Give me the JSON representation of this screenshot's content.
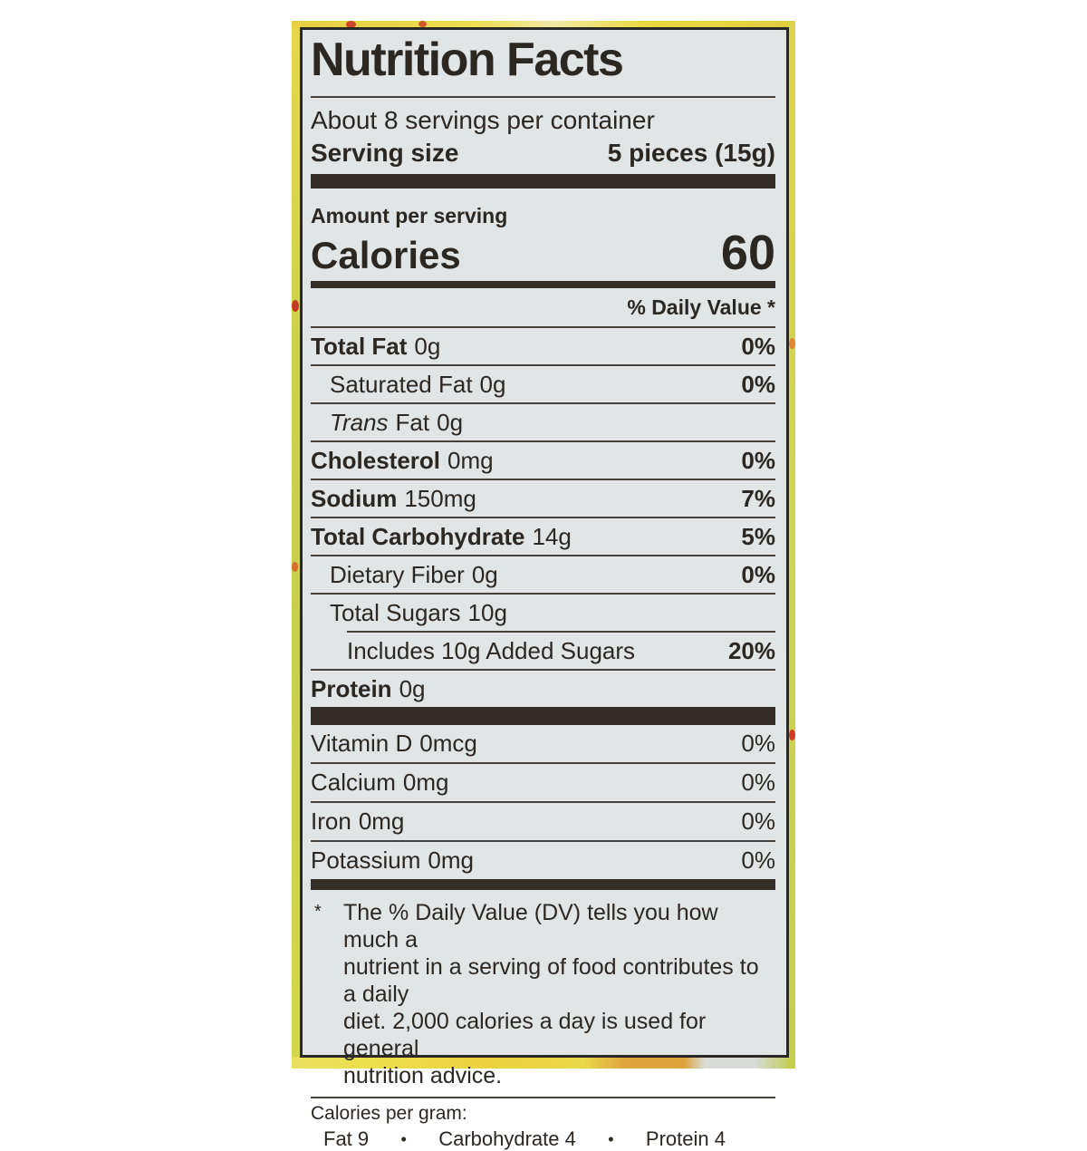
{
  "title": "Nutrition Facts",
  "servings_per_container": "About 8 servings per container",
  "serving_size": {
    "label": "Serving size",
    "value": "5 pieces (15g)"
  },
  "amount_per_serving": "Amount per serving",
  "calories": {
    "label": "Calories",
    "value": "60"
  },
  "daily_value_header": "% Daily Value *",
  "nutrients": [
    {
      "name": "Total Fat",
      "amount": "0g",
      "dv": "0%"
    },
    {
      "name": "Saturated Fat",
      "amount": "0g",
      "dv": "0%"
    },
    {
      "name_italic": "Trans",
      "name": "Fat",
      "amount": "0g",
      "dv": ""
    },
    {
      "name": "Cholesterol",
      "amount": "0mg",
      "dv": "0%"
    },
    {
      "name": "Sodium",
      "amount": "150mg",
      "dv": "7%"
    },
    {
      "name": "Total Carbohydrate",
      "amount": "14g",
      "dv": "5%"
    },
    {
      "name": "Dietary Fiber",
      "amount": "0g",
      "dv": "0%"
    },
    {
      "name": "Total Sugars",
      "amount": "10g",
      "dv": ""
    },
    {
      "name": "Includes 10g Added Sugars",
      "amount": "",
      "dv": "20%"
    },
    {
      "name": "Protein",
      "amount": "0g",
      "dv": ""
    }
  ],
  "vitamins": [
    {
      "name": "Vitamin D",
      "amount": "0mcg",
      "dv": "0%"
    },
    {
      "name": "Calcium",
      "amount": "0mg",
      "dv": "0%"
    },
    {
      "name": "Iron",
      "amount": "0mg",
      "dv": "0%"
    },
    {
      "name": "Potassium",
      "amount": "0mg",
      "dv": "0%"
    }
  ],
  "footnote": {
    "marker": "*",
    "lines": [
      "The % Daily Value (DV) tells you how much a",
      "nutrient in a serving of food contributes to a daily",
      "diet. 2,000 calories a day is used for general",
      "nutrition advice."
    ]
  },
  "calories_per_gram": {
    "label": "Calories per gram:",
    "separator": "•",
    "items": [
      "Fat 9",
      "Carbohydrate 4",
      "Protein 4"
    ]
  },
  "colors": {
    "label_background": "#e2e5e6",
    "text": "#2b2722",
    "rule": "#45403a",
    "bar": "#342d25",
    "package_yellow": "#e5d149",
    "package_green": "#cdd24c",
    "dot_red": "#cf3b23",
    "dot_orange": "#e0862f",
    "patch_orange": "#dfa53f",
    "patch_gray": "#d8dbd8"
  }
}
